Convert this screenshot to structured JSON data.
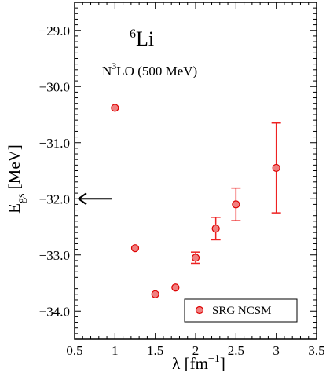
{
  "chart_data": {
    "type": "scatter",
    "xlabel": "λ [fm",
    "xlabel_exp": "−1",
    "xlabel_close": "]",
    "ylabel": "E",
    "ylabel_sub": "gs",
    "ylabel_unit": " [MeV]",
    "xlim": [
      0.5,
      3.5
    ],
    "ylim": [
      -34.5,
      -28.5
    ],
    "xticks": [
      0.5,
      1,
      1.5,
      2,
      2.5,
      3,
      3.5
    ],
    "xtick_labels": [
      "0.5",
      "1",
      "1.5",
      "2",
      "2.5",
      "3",
      "3.5"
    ],
    "yticks": [
      -29,
      -30,
      -31,
      -32,
      -33,
      -34
    ],
    "ytick_labels": [
      "−29.0",
      "−30.0",
      "−31.0",
      "−32.0",
      "−33.0",
      "−34.0"
    ],
    "grid": false,
    "legend_position": "bottom-right",
    "series": [
      {
        "name": "SRG NCSM",
        "color": "#ee2222",
        "marker": "circle",
        "points": [
          {
            "x": 1.0,
            "y": -30.38,
            "err": 0
          },
          {
            "x": 1.25,
            "y": -32.88,
            "err": 0
          },
          {
            "x": 1.5,
            "y": -33.7,
            "err": 0
          },
          {
            "x": 1.75,
            "y": -33.58,
            "err": 0
          },
          {
            "x": 2.0,
            "y": -33.05,
            "err": 0.1
          },
          {
            "x": 2.25,
            "y": -32.53,
            "err": 0.2
          },
          {
            "x": 2.5,
            "y": -32.1,
            "err": 0.29
          },
          {
            "x": 3.0,
            "y": -31.45,
            "err": 0.8
          }
        ]
      }
    ],
    "annotations": {
      "nucleus_mass": "6",
      "nucleus": "Li",
      "interaction_pre": "N",
      "interaction_sup": "3",
      "interaction_post": "LO (500 MeV)",
      "arrow_y": -32.0
    }
  }
}
